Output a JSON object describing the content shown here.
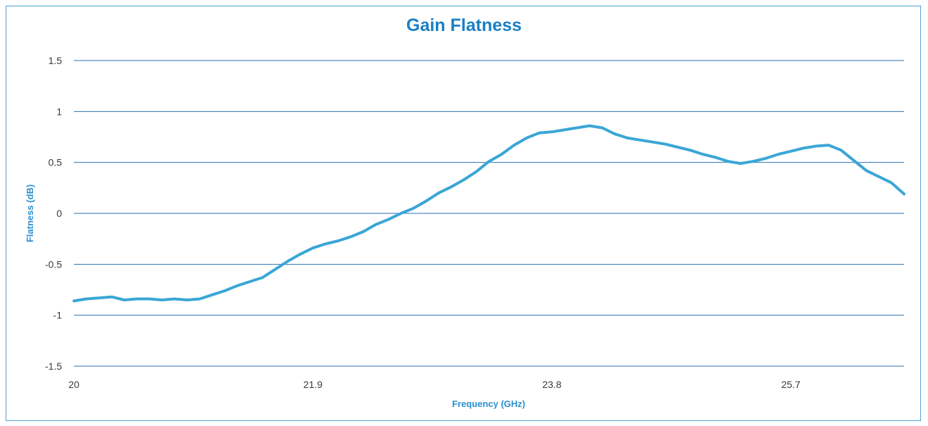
{
  "chart_data": {
    "type": "line",
    "title": "Gain Flatness",
    "xlabel": "Frequency (GHz)",
    "ylabel": "Flatness (dB)",
    "xlim": [
      20,
      26.6
    ],
    "ylim": [
      -1.5,
      1.5
    ],
    "x_ticks": [
      "20",
      "21.9",
      "23.8",
      "25.7"
    ],
    "x_tick_values": [
      20,
      21.9,
      23.8,
      25.7
    ],
    "y_ticks": [
      "1.5",
      "1",
      "0.5",
      "0",
      "-0.5",
      "-1",
      "-1.5"
    ],
    "y_tick_values": [
      1.5,
      1,
      0.5,
      0,
      -0.5,
      -1,
      -1.5
    ],
    "grid": "horizontal",
    "line_color": "#3aa6d6",
    "series": [
      {
        "x": [
          20.0,
          20.1,
          20.2,
          20.3,
          20.4,
          20.5,
          20.6,
          20.7,
          20.8,
          20.9,
          21.0,
          21.1,
          21.2,
          21.3,
          21.4,
          21.5,
          21.6,
          21.7,
          21.8,
          21.9,
          22.0,
          22.1,
          22.2,
          22.3,
          22.4,
          22.5,
          22.6,
          22.7,
          22.8,
          22.9,
          23.0,
          23.1,
          23.2,
          23.3,
          23.4,
          23.5,
          23.6,
          23.7,
          23.8,
          23.9,
          24.0,
          24.1,
          24.2,
          24.3,
          24.4,
          24.5,
          24.6,
          24.7,
          24.8,
          24.9,
          25.0,
          25.1,
          25.2,
          25.3,
          25.4,
          25.5,
          25.6,
          25.7,
          25.8,
          25.9,
          26.0,
          26.1,
          26.2,
          26.3,
          26.4,
          26.5,
          26.6
        ],
        "values": [
          -0.86,
          -0.84,
          -0.83,
          -0.82,
          -0.85,
          -0.84,
          -0.84,
          -0.85,
          -0.84,
          -0.85,
          -0.84,
          -0.8,
          -0.76,
          -0.71,
          -0.67,
          -0.63,
          -0.55,
          -0.47,
          -0.4,
          -0.34,
          -0.3,
          -0.27,
          -0.23,
          -0.18,
          -0.11,
          -0.06,
          0.0,
          0.05,
          0.12,
          0.2,
          0.26,
          0.33,
          0.41,
          0.51,
          0.58,
          0.67,
          0.74,
          0.79,
          0.8,
          0.82,
          0.84,
          0.86,
          0.84,
          0.78,
          0.74,
          0.72,
          0.7,
          0.68,
          0.65,
          0.62,
          0.58,
          0.55,
          0.51,
          0.49,
          0.51,
          0.54,
          0.58,
          0.61,
          0.64,
          0.66,
          0.67,
          0.62,
          0.52,
          0.42,
          0.36,
          0.3,
          0.19
        ]
      }
    ]
  }
}
